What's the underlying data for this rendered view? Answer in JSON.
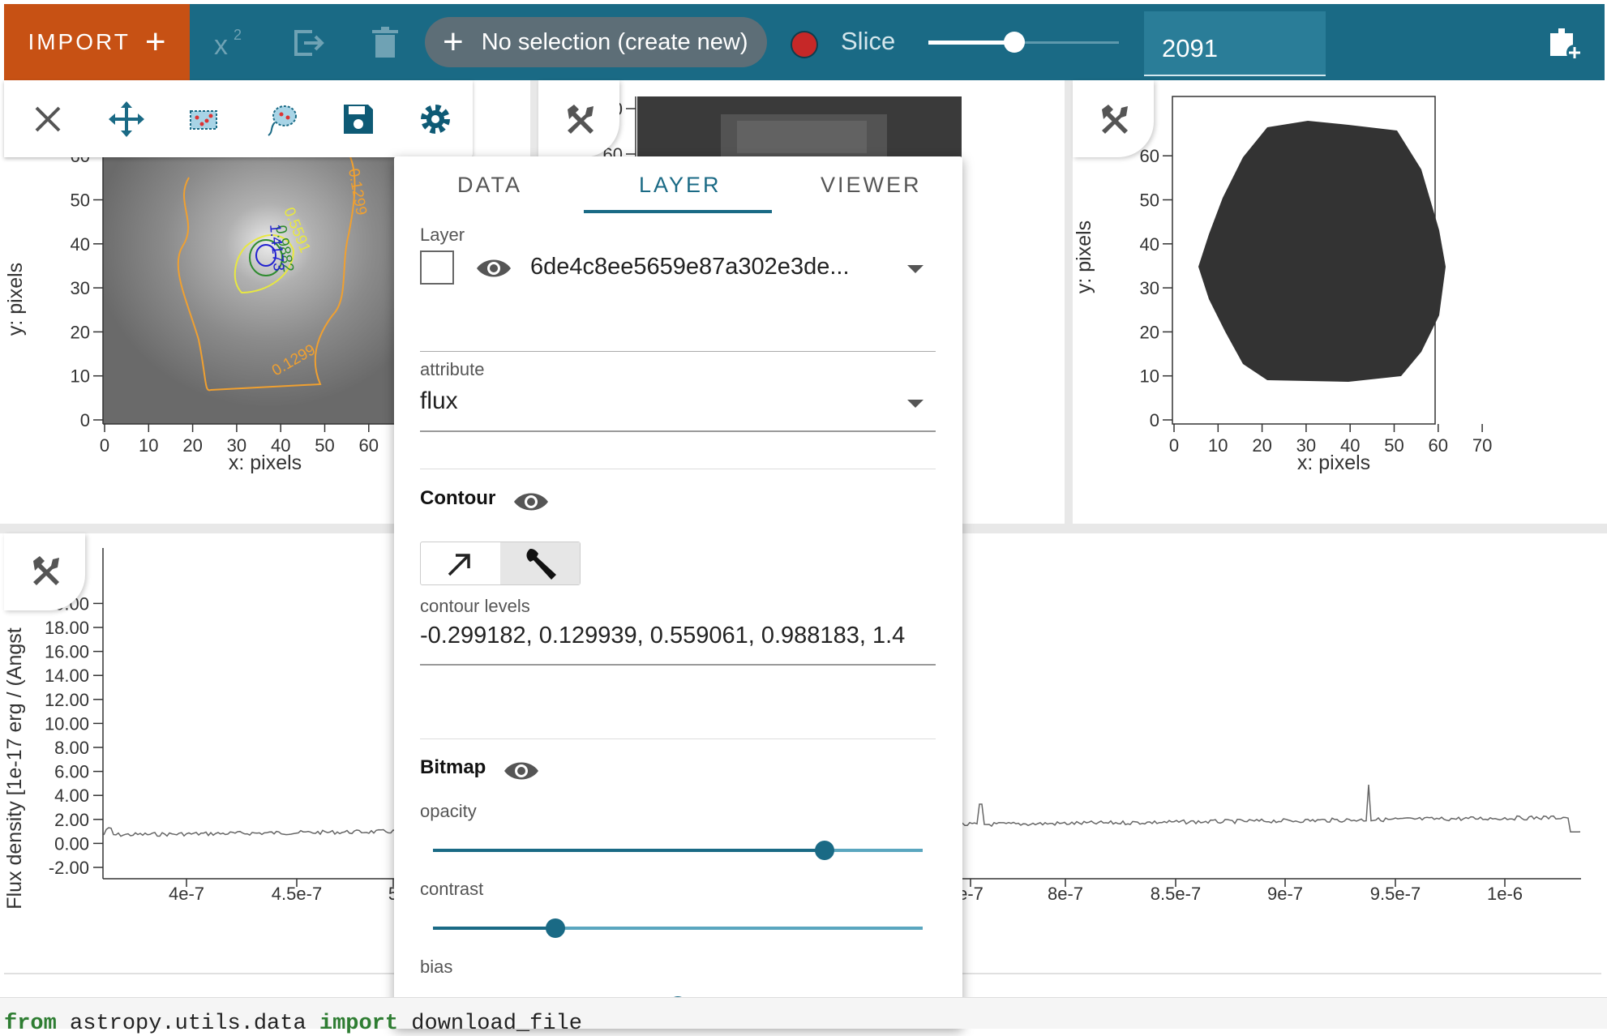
{
  "toolbar": {
    "import_label": "IMPORT",
    "selection_label": "No selection (create new)",
    "slice_label": "Slice",
    "slice_value": "2091",
    "slice_slider_fraction": 0.46
  },
  "viewers": {
    "image1": {
      "y_label": "y: pixels",
      "x_label": "x: pixels",
      "y_ticks": [
        "0",
        "10",
        "20",
        "30",
        "40",
        "50",
        "60"
      ],
      "x_ticks": [
        "0",
        "10",
        "20",
        "30",
        "40",
        "50",
        "60"
      ],
      "contour_labels": [
        "0.5591",
        "0.9882",
        "1.4173",
        "0.1299",
        "0.1299"
      ]
    },
    "image2": {
      "y_ticks": [
        "0",
        "60"
      ]
    },
    "image3": {
      "y_label": "y: pixels",
      "x_label": "x: pixels",
      "y_ticks": [
        "0",
        "10",
        "20",
        "30",
        "40",
        "50",
        "60"
      ],
      "x_ticks": [
        "0",
        "10",
        "20",
        "30",
        "40",
        "50",
        "60",
        "70"
      ]
    },
    "spectrum": {
      "y_label": "Flux density [1e-17 erg / (Angst",
      "y_ticks": [
        "-2.00",
        "0.00",
        "2.00",
        "4.00",
        "6.00",
        "8.00",
        "10.00",
        "12.00",
        "14.00",
        "16.00",
        "18.00",
        "20.00"
      ],
      "x_ticks_left": [
        "4e-7",
        "4.5e-7",
        "5"
      ],
      "x_ticks_right": [
        "e-7",
        "8e-7",
        "8.5e-7",
        "9e-7",
        "9.5e-7",
        "1e-6"
      ]
    }
  },
  "popup": {
    "tabs": [
      "DATA",
      "LAYER",
      "VIEWER"
    ],
    "active_tab": "LAYER",
    "layer_label": "Layer",
    "layer_value": "6de4c8ee5659e87a302e3de...",
    "attribute_label": "attribute",
    "attribute_value": "flux",
    "contour_heading": "Contour",
    "contour_levels_label": "contour levels",
    "contour_levels_value": "-0.299182, 0.129939, 0.559061, 0.988183, 1.4",
    "bitmap_heading": "Bitmap",
    "opacity_label": "opacity",
    "opacity_value": 0.8,
    "contrast_label": "contrast",
    "contrast_value": 0.25,
    "bias_label": "bias",
    "bias_value": 0.5
  },
  "code": {
    "kw1": "from",
    "mid": " astropy.utils.data ",
    "kw2": "import",
    "rest": " download_file"
  },
  "colors": {
    "toolbar": "#1a6a85",
    "import": "#c75114",
    "accent": "#1a6a85",
    "contour_orange": "#f0a030",
    "contour_yellow": "#e8e840",
    "contour_green": "#2e8b2e",
    "contour_blue": "#2020d0"
  }
}
